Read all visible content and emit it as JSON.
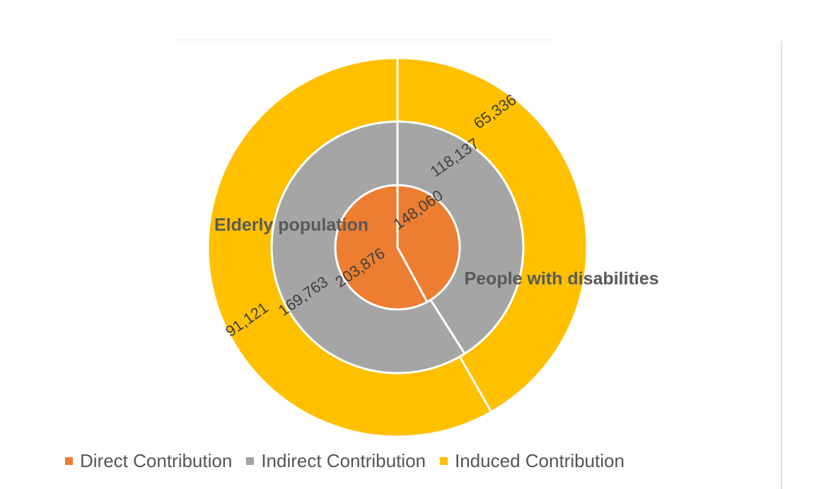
{
  "chart_data": {
    "type": "multi-level donut",
    "categories": [
      "Elderly population",
      "People with disabilities"
    ],
    "series": [
      {
        "name": "Direct Contribution",
        "values": [
          203876,
          148060
        ],
        "labels": [
          "203,876",
          "148,060"
        ],
        "color": "#ED7D31"
      },
      {
        "name": "Indirect Contribution",
        "values": [
          169763,
          118137
        ],
        "labels": [
          "169,763",
          "118,137"
        ],
        "color": "#A5A5A5"
      },
      {
        "name": "Induced Contribution",
        "values": [
          91121,
          65336
        ],
        "labels": [
          "91,121",
          "65,336"
        ],
        "color": "#FFC000"
      }
    ],
    "legend_position": "bottom",
    "title": ""
  }
}
